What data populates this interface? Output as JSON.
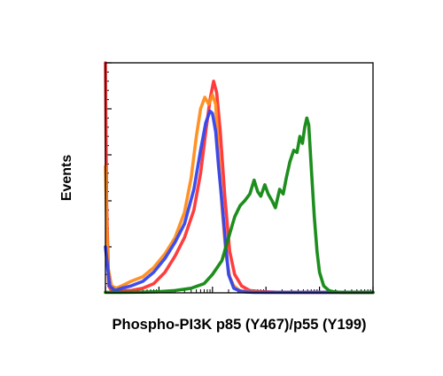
{
  "chart_data": {
    "type": "line",
    "title": "",
    "xlabel": "Phospho-PI3K p85 (Y467)/p55 (Y199)",
    "ylabel": "Events",
    "x_scale": "log",
    "xlim": [
      1,
      100000
    ],
    "ylim": [
      0,
      100
    ],
    "grid": false,
    "legend": "none",
    "series": [
      {
        "color": "#ff3333",
        "x": [
          1,
          1.05,
          1.15,
          1.3,
          1.6,
          2,
          3,
          5,
          8,
          13,
          20,
          30,
          45,
          60,
          75,
          90,
          105,
          120,
          140,
          170,
          210,
          260,
          350,
          500,
          800,
          1500,
          5000,
          100000
        ],
        "y": [
          100,
          40,
          3,
          1,
          0.5,
          1,
          1,
          2,
          4,
          9,
          16,
          24,
          36,
          52,
          70,
          84,
          92,
          87,
          70,
          42,
          18,
          8,
          3,
          1,
          0.5,
          0.3,
          0.2,
          0.2
        ]
      },
      {
        "color": "#ff8c1a",
        "x": [
          1,
          1.1,
          1.3,
          1.6,
          2,
          3,
          5,
          8,
          13,
          20,
          30,
          40,
          50,
          60,
          72,
          85,
          100,
          115,
          130,
          150,
          180,
          210,
          250,
          320,
          500,
          1000,
          100000
        ],
        "y": [
          55,
          12,
          3,
          2,
          3,
          5,
          7,
          11,
          17,
          24,
          35,
          50,
          68,
          80,
          85,
          82,
          86,
          82,
          60,
          38,
          16,
          7,
          3,
          1,
          0.5,
          0.2,
          0.2
        ]
      },
      {
        "color": "#3344ee",
        "x": [
          1,
          1.2,
          1.5,
          2,
          3,
          5,
          8,
          13,
          20,
          30,
          45,
          60,
          75,
          90,
          100,
          115,
          130,
          150,
          175,
          200,
          250,
          350,
          600,
          100000
        ],
        "y": [
          20,
          3,
          1,
          2,
          3,
          5,
          9,
          15,
          22,
          30,
          45,
          62,
          74,
          79,
          78,
          70,
          55,
          40,
          22,
          8,
          2,
          0.5,
          0.2,
          0.2
        ]
      },
      {
        "color": "#118811",
        "x": [
          1,
          2,
          5,
          10,
          20,
          40,
          70,
          100,
          150,
          200,
          260,
          330,
          400,
          500,
          600,
          700,
          800,
          950,
          1100,
          1300,
          1500,
          1800,
          2100,
          2400,
          2800,
          3300,
          3800,
          4300,
          4800,
          5300,
          5800,
          6300,
          7000,
          8000,
          9000,
          10000,
          12000,
          15000,
          18000,
          25000,
          40000,
          100000
        ],
        "y": [
          0.2,
          0.2,
          0.3,
          0.5,
          1,
          2,
          4,
          8,
          14,
          24,
          33,
          38,
          40,
          43,
          49,
          44,
          42,
          47,
          43,
          40,
          37,
          45,
          43,
          50,
          57,
          62,
          61,
          68,
          65,
          72,
          76,
          73,
          55,
          33,
          18,
          9,
          3,
          1,
          0.5,
          0.2,
          0.2,
          0.2
        ]
      }
    ]
  }
}
